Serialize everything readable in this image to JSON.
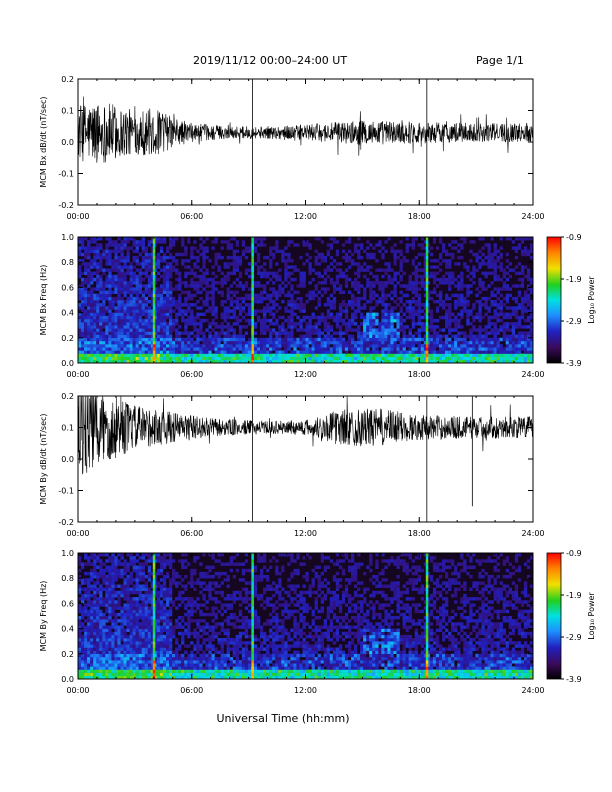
{
  "header": {
    "title": "2019/11/12  00:00–24:00 UT",
    "page": "Page 1/1"
  },
  "footer": {
    "xlabel": "Universal Time (hh:mm)"
  },
  "colors": {
    "trace": "#000000",
    "colormap": [
      "#000000",
      "#3a0a5a",
      "#2020c0",
      "#1e90ff",
      "#00e0e0",
      "#20d020",
      "#f0e000",
      "#ff8000",
      "#ff0000"
    ]
  },
  "chart_data": [
    {
      "type": "line",
      "ylabel": "MCM Bx dB/dt (nT/sec)",
      "xlim": [
        0,
        24
      ],
      "ylim": [
        -0.2,
        0.2
      ],
      "x_ticks": [
        "00:00",
        "06:00",
        "12:00",
        "18:00",
        "24:00"
      ],
      "y_ticks": [
        "-0.2",
        "-0.1",
        "0.0",
        "0.1",
        "0.2"
      ],
      "baseline": 0.03,
      "envelope": [
        {
          "hour": 0,
          "amp": 0.09
        },
        {
          "hour": 1,
          "amp": 0.1
        },
        {
          "hour": 2,
          "amp": 0.09
        },
        {
          "hour": 3,
          "amp": 0.07
        },
        {
          "hour": 4,
          "amp": 0.08
        },
        {
          "hour": 5,
          "amp": 0.05
        },
        {
          "hour": 6,
          "amp": 0.03
        },
        {
          "hour": 8,
          "amp": 0.02
        },
        {
          "hour": 10,
          "amp": 0.02
        },
        {
          "hour": 12,
          "amp": 0.025
        },
        {
          "hour": 15,
          "amp": 0.04
        },
        {
          "hour": 18,
          "amp": 0.035
        },
        {
          "hour": 21,
          "amp": 0.03
        },
        {
          "hour": 24,
          "amp": 0.03
        }
      ],
      "spikes": [
        {
          "hour": 9.2,
          "value": -0.2
        },
        {
          "hour": 18.4,
          "value": -0.2
        }
      ]
    },
    {
      "type": "heatmap",
      "ylabel": "MCM Bx Freq (Hz)",
      "xlim": [
        0,
        24
      ],
      "ylim": [
        0,
        1.0
      ],
      "x_ticks": [
        "00:00",
        "06:00",
        "12:00",
        "18:00",
        "24:00"
      ],
      "y_ticks": [
        "0.0",
        "0.2",
        "0.4",
        "0.6",
        "0.8",
        "1.0"
      ],
      "colorbar": {
        "label": "Log₁₀ Power",
        "range": [
          -3.9,
          -0.9
        ],
        "ticks": [
          "-0.9",
          "-1.9",
          "-2.9",
          "-3.9"
        ]
      },
      "vertical_lines": [
        4.0,
        9.2,
        18.4
      ],
      "enhanced_region": {
        "hours": [
          15.0,
          17.0
        ],
        "freq": [
          0.2,
          0.4
        ]
      }
    },
    {
      "type": "line",
      "ylabel": "MCM By dB/dt (nT/sec)",
      "xlim": [
        0,
        24
      ],
      "ylim": [
        -0.2,
        0.2
      ],
      "x_ticks": [
        "00:00",
        "06:00",
        "12:00",
        "18:00",
        "24:00"
      ],
      "y_ticks": [
        "-0.2",
        "-0.1",
        "0.0",
        "0.1",
        "0.2"
      ],
      "baseline": 0.1,
      "envelope": [
        {
          "hour": 0,
          "amp": 0.16
        },
        {
          "hour": 1,
          "amp": 0.14
        },
        {
          "hour": 2,
          "amp": 0.1
        },
        {
          "hour": 3,
          "amp": 0.07
        },
        {
          "hour": 5,
          "amp": 0.05
        },
        {
          "hour": 7,
          "amp": 0.03
        },
        {
          "hour": 10,
          "amp": 0.02
        },
        {
          "hour": 12,
          "amp": 0.025
        },
        {
          "hour": 14,
          "amp": 0.06
        },
        {
          "hour": 16,
          "amp": 0.06
        },
        {
          "hour": 18,
          "amp": 0.04
        },
        {
          "hour": 21,
          "amp": 0.035
        },
        {
          "hour": 24,
          "amp": 0.035
        }
      ],
      "spikes": [
        {
          "hour": 9.2,
          "value": -0.2
        },
        {
          "hour": 18.4,
          "value": -0.2
        },
        {
          "hour": 20.8,
          "value": -0.15
        }
      ]
    },
    {
      "type": "heatmap",
      "ylabel": "MCM By Freq (Hz)",
      "xlim": [
        0,
        24
      ],
      "ylim": [
        0,
        1.0
      ],
      "x_ticks": [
        "00:00",
        "06:00",
        "12:00",
        "18:00",
        "24:00"
      ],
      "y_ticks": [
        "0.0",
        "0.2",
        "0.4",
        "0.6",
        "0.8",
        "1.0"
      ],
      "colorbar": {
        "label": "Log₁₀ Power",
        "range": [
          -3.9,
          -0.9
        ],
        "ticks": [
          "-0.9",
          "-1.9",
          "-2.9",
          "-3.9"
        ]
      },
      "vertical_lines": [
        4.0,
        9.2,
        18.4
      ],
      "enhanced_region": {
        "hours": [
          15.0,
          17.0
        ],
        "freq": [
          0.2,
          0.4
        ]
      }
    }
  ]
}
